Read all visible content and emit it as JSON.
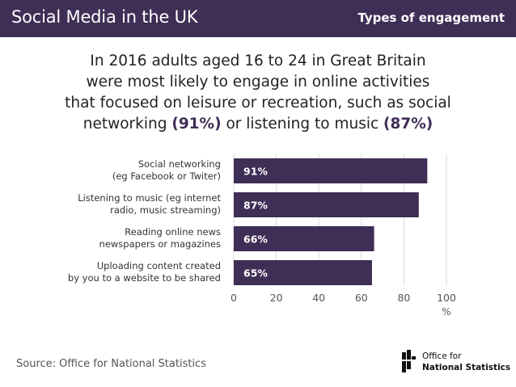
{
  "header": {
    "title": "Social Media in the UK",
    "badge": "Types of engagement"
  },
  "headline": {
    "line1": "In 2016 adults aged 16 to 24 in Great Britain",
    "line2": "were most likely to engage in online activities",
    "line3": "that focused on leisure or recreation, such as social",
    "line4_pre": "networking ",
    "line4_hl1": "(91%)",
    "line4_mid": " or listening to music ",
    "line4_hl2": "(87%)"
  },
  "chart_data": {
    "type": "bar",
    "orientation": "horizontal",
    "categories": [
      [
        "Social networking",
        "(eg Facebook or Twiter)"
      ],
      [
        "Listening to music (eg internet",
        "radio, music streaming)"
      ],
      [
        "Reading online news",
        "newspapers or magazines"
      ],
      [
        "Uploading content created",
        "by you to a website to be shared"
      ]
    ],
    "values": [
      91,
      87,
      66,
      65
    ],
    "value_labels": [
      "91%",
      "87%",
      "66%",
      "65%"
    ],
    "xlim": [
      0,
      100
    ],
    "xticks": [
      "0",
      "20",
      "40",
      "60",
      "80",
      "100"
    ],
    "xlabel": "%",
    "grid": "vertical",
    "bar_color": "#3f2e55",
    "grid_color": "#d9d9d9"
  },
  "footer": {
    "source": "Source: Office for National Statistics",
    "logo_line1": "Office for",
    "logo_line2": "National Statistics"
  },
  "colors": {
    "brand": "#3f2e55"
  }
}
